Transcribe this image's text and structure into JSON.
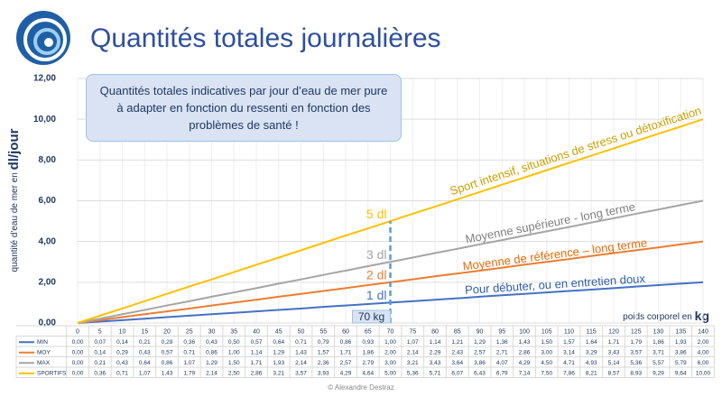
{
  "chart_data": {
    "type": "line",
    "title": "Quantités totales journalières",
    "y_label": "quantité d'eau de mer en",
    "y_unit": "dl/jour",
    "x_label": "poids corporel en",
    "x_unit": "kg",
    "callout": "Quantités totales indicatives par jour d’eau de mer pure à adapter en fonction du ressenti en fonction des problèmes de santé !",
    "categories": [
      0,
      5,
      10,
      15,
      20,
      25,
      30,
      35,
      40,
      45,
      50,
      55,
      60,
      65,
      70,
      75,
      80,
      85,
      90,
      95,
      100,
      105,
      110,
      115,
      120,
      125,
      130,
      135,
      140
    ],
    "ylim": [
      0,
      12
    ],
    "yticks": [
      {
        "value": 0,
        "label": "0,00"
      },
      {
        "value": 2,
        "label": "2,00"
      },
      {
        "value": 4,
        "label": "4,00"
      },
      {
        "value": 6,
        "label": "6,00"
      },
      {
        "value": 8,
        "label": "8,00"
      },
      {
        "value": 10,
        "label": "10,00"
      },
      {
        "value": 12,
        "label": "12,00"
      }
    ],
    "grid": true,
    "series": [
      {
        "name": "MIN",
        "color": "#4472c4",
        "annotation": "Pour débuter, ou en entretien doux",
        "values": [
          0,
          0.07,
          0.14,
          0.21,
          0.29,
          0.36,
          0.43,
          0.5,
          0.57,
          0.64,
          0.71,
          0.79,
          0.86,
          0.93,
          1,
          1.07,
          1.14,
          1.21,
          1.29,
          1.36,
          1.43,
          1.5,
          1.57,
          1.64,
          1.71,
          1.79,
          1.86,
          1.93,
          2
        ],
        "value_labels": [
          "0,00",
          "0,07",
          "0,14",
          "0,21",
          "0,29",
          "0,36",
          "0,43",
          "0,50",
          "0,57",
          "0,64",
          "0,71",
          "0,79",
          "0,86",
          "0,93",
          "1,00",
          "1,07",
          "1,14",
          "1,21",
          "1,29",
          "1,36",
          "1,43",
          "1,50",
          "1,57",
          "1,64",
          "1,71",
          "1,79",
          "1,86",
          "1,93",
          "2,00"
        ]
      },
      {
        "name": "MOY",
        "color": "#ed7d31",
        "annotation": "Moyenne de référence – long terme",
        "values": [
          0,
          0.14,
          0.29,
          0.43,
          0.57,
          0.71,
          0.86,
          1,
          1.14,
          1.29,
          1.43,
          1.57,
          1.71,
          1.86,
          2,
          2.14,
          2.29,
          2.43,
          2.57,
          2.71,
          2.86,
          3,
          3.14,
          3.29,
          3.43,
          3.57,
          3.71,
          3.86,
          4
        ],
        "value_labels": [
          "0,00",
          "0,14",
          "0,29",
          "0,43",
          "0,57",
          "0,71",
          "0,86",
          "1,00",
          "1,14",
          "1,29",
          "1,43",
          "1,57",
          "1,71",
          "1,86",
          "2,00",
          "2,14",
          "2,29",
          "2,43",
          "2,57",
          "2,71",
          "2,86",
          "3,00",
          "3,14",
          "3,29",
          "3,43",
          "3,57",
          "3,71",
          "3,86",
          "4,00"
        ]
      },
      {
        "name": "MAX",
        "color": "#a5a5a5",
        "annotation": "Moyenne supérieure - long terme",
        "values": [
          0,
          0.21,
          0.43,
          0.64,
          0.86,
          1.07,
          1.29,
          1.5,
          1.71,
          1.93,
          2.14,
          2.36,
          2.57,
          2.79,
          3,
          3.21,
          3.43,
          3.64,
          3.86,
          4.07,
          4.29,
          4.5,
          4.71,
          4.93,
          5.14,
          5.36,
          5.57,
          5.79,
          6
        ],
        "value_labels": [
          "0,00",
          "0,21",
          "0,43",
          "0,64",
          "0,86",
          "1,07",
          "1,29",
          "1,50",
          "1,71",
          "1,93",
          "2,14",
          "2,36",
          "2,57",
          "2,79",
          "3,00",
          "3,21",
          "3,43",
          "3,64",
          "3,86",
          "4,07",
          "4,29",
          "4,50",
          "4,71",
          "4,93",
          "5,14",
          "5,36",
          "5,57",
          "5,79",
          "6,00"
        ]
      },
      {
        "name": "SPORTIFS",
        "color": "#ffc000",
        "annotation": "Sport intensif, situations de stress ou détoxification",
        "values": [
          0,
          0.36,
          0.71,
          1.07,
          1.43,
          1.79,
          2.14,
          2.5,
          2.86,
          3.21,
          3.57,
          3.93,
          4.29,
          4.64,
          5,
          5.36,
          5.71,
          6.07,
          6.43,
          6.79,
          7.14,
          7.5,
          7.86,
          8.21,
          8.57,
          8.93,
          9.29,
          9.64,
          10
        ],
        "value_labels": [
          "0,00",
          "0,36",
          "0,71",
          "1,07",
          "1,43",
          "1,79",
          "2,14",
          "2,50",
          "2,86",
          "3,21",
          "3,57",
          "3,93",
          "4,29",
          "4,64",
          "5,00",
          "5,36",
          "5,71",
          "6,07",
          "6,43",
          "6,79",
          "7,14",
          "7,50",
          "7,86",
          "8,21",
          "8,57",
          "8,93",
          "9,29",
          "9,64",
          "10,00"
        ]
      }
    ],
    "marker": {
      "x": 70,
      "label": "70 kg",
      "levels": [
        {
          "value": 5,
          "label": "5 dl"
        },
        {
          "value": 3,
          "label": "3 dl"
        },
        {
          "value": 2,
          "label": "2 dl"
        },
        {
          "value": 1,
          "label": "1 dl"
        }
      ]
    },
    "credit": "© Alexandre Destraz"
  }
}
